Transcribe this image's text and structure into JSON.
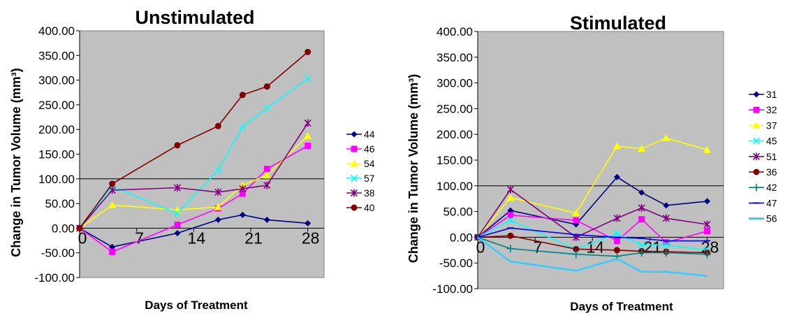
{
  "chart_data": [
    {
      "type": "line",
      "title": "Unstimulated",
      "xlabel": "Days of Treatment",
      "ylabel": "Change in Tumor Volume (mm³)",
      "ylim": [
        -100,
        400
      ],
      "xlim": [
        0,
        30
      ],
      "xticks": [
        0,
        7,
        14,
        21,
        28
      ],
      "xtick_labels": [
        "0",
        "7",
        "14",
        "21",
        "28"
      ],
      "yticks": [
        -100,
        -50,
        0,
        50,
        100,
        150,
        200,
        250,
        300,
        350,
        400
      ],
      "ytick_labels": [
        "-100.00",
        "-50.00",
        "0.00",
        "50.00",
        "100.00",
        "150.00",
        "200.00",
        "250.00",
        "300.00",
        "350.00",
        "400.00"
      ],
      "grid": "zero and 100 lines only",
      "plot_background": "#c0c0c0",
      "legend_position": "right",
      "series": [
        {
          "name": "44",
          "color": "#000080",
          "marker": "diamond",
          "x": [
            0,
            4,
            12,
            17,
            20,
            23,
            28
          ],
          "y": [
            0,
            -38,
            -10,
            17,
            27,
            17,
            10
          ]
        },
        {
          "name": "46",
          "color": "#ff00ff",
          "marker": "square",
          "x": [
            0,
            4,
            12,
            17,
            20,
            23,
            28
          ],
          "y": [
            0,
            -48,
            7,
            40,
            70,
            120,
            167
          ]
        },
        {
          "name": "54",
          "color": "#ffff00",
          "marker": "triangle",
          "x": [
            0,
            4,
            12,
            17,
            20,
            23,
            28
          ],
          "y": [
            0,
            47,
            37,
            43,
            87,
            107,
            187
          ]
        },
        {
          "name": "57",
          "color": "#00ffff",
          "marker": "x",
          "x": [
            0,
            4,
            12,
            17,
            20,
            23,
            28
          ],
          "y": [
            0,
            85,
            30,
            117,
            205,
            243,
            303
          ]
        },
        {
          "name": "38",
          "color": "#800080",
          "marker": "star",
          "x": [
            0,
            4,
            12,
            17,
            20,
            23,
            28
          ],
          "y": [
            0,
            77,
            82,
            73,
            80,
            87,
            213
          ]
        },
        {
          "name": "40",
          "color": "#800000",
          "marker": "circle",
          "x": [
            0,
            4,
            12,
            17,
            20,
            23,
            28
          ],
          "y": [
            0,
            90,
            168,
            207,
            270,
            287,
            357
          ]
        }
      ]
    },
    {
      "type": "line",
      "title": "Stimulated",
      "xlabel": "Days of Treatment",
      "ylabel": "Change in Tumor Volume (mm³)",
      "ylim": [
        -100,
        400
      ],
      "xlim": [
        0,
        30
      ],
      "xticks": [
        0,
        7,
        14,
        21,
        28
      ],
      "xtick_labels": [
        "0",
        "7",
        "14",
        "21",
        "28"
      ],
      "yticks": [
        -100,
        -50,
        0,
        50,
        100,
        150,
        200,
        250,
        300,
        350,
        400
      ],
      "ytick_labels": [
        "-100.00",
        "-50.00",
        "0.00",
        "50.00",
        "100.00",
        "150.00",
        "200.00",
        "250.00",
        "300.00",
        "350.00",
        "400.00"
      ],
      "grid": "zero and 100 lines only",
      "plot_background": "#c0c0c0",
      "legend_position": "right",
      "series": [
        {
          "name": "31",
          "color": "#000080",
          "marker": "diamond",
          "x": [
            0,
            4,
            12,
            17,
            20,
            23,
            28
          ],
          "y": [
            0,
            52,
            25,
            117,
            87,
            62,
            70
          ]
        },
        {
          "name": "32",
          "color": "#ff00ff",
          "marker": "square",
          "x": [
            0,
            4,
            12,
            17,
            20,
            23,
            28
          ],
          "y": [
            0,
            43,
            33,
            -7,
            35,
            -10,
            12
          ]
        },
        {
          "name": "37",
          "color": "#ffff00",
          "marker": "triangle",
          "x": [
            0,
            4,
            12,
            17,
            20,
            23,
            28
          ],
          "y": [
            0,
            77,
            47,
            177,
            172,
            193,
            170
          ]
        },
        {
          "name": "45",
          "color": "#00ffff",
          "marker": "x",
          "x": [
            0,
            4,
            12,
            17,
            20,
            23,
            28
          ],
          "y": [
            0,
            33,
            -23,
            7,
            -15,
            -15,
            -25
          ]
        },
        {
          "name": "51",
          "color": "#800080",
          "marker": "star",
          "x": [
            0,
            4,
            12,
            17,
            20,
            23,
            28
          ],
          "y": [
            0,
            93,
            0,
            37,
            57,
            37,
            25
          ]
        },
        {
          "name": "36",
          "color": "#800000",
          "marker": "circle",
          "x": [
            0,
            4,
            12,
            17,
            20,
            23,
            28
          ],
          "y": [
            0,
            3,
            -23,
            -25,
            -27,
            -28,
            -30
          ]
        },
        {
          "name": "42",
          "color": "#008080",
          "marker": "plus",
          "x": [
            0,
            4,
            12,
            17,
            20,
            23,
            28
          ],
          "y": [
            0,
            -22,
            -33,
            -37,
            -30,
            -30,
            -33
          ]
        },
        {
          "name": "47",
          "color": "#0000ff",
          "marker": "dash",
          "x": [
            0,
            4,
            12,
            17,
            20,
            23,
            28
          ],
          "y": [
            0,
            18,
            5,
            0,
            -2,
            -7,
            -7
          ]
        },
        {
          "name": "56",
          "color": "#33ccff",
          "marker": "none",
          "x": [
            0,
            4,
            12,
            17,
            20,
            23,
            28
          ],
          "y": [
            0,
            -47,
            -65,
            -42,
            -67,
            -67,
            -75
          ]
        }
      ]
    }
  ]
}
